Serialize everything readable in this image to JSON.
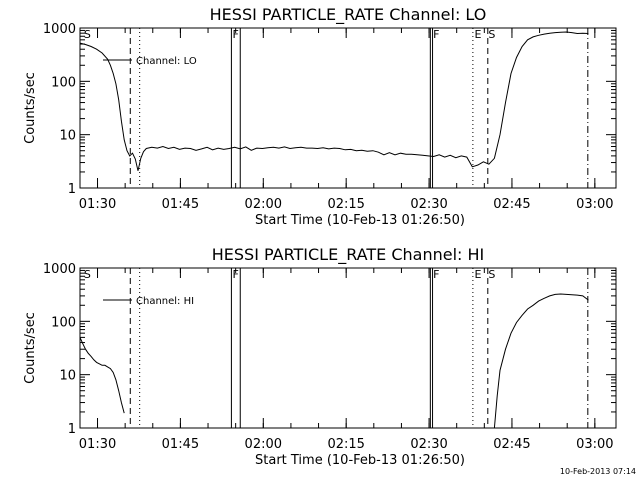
{
  "footer": {
    "timestamp": "10-Feb-2013 07:14"
  },
  "chart_data": [
    {
      "type": "line",
      "title": "HESSI PARTICLE_RATE Channel: LO",
      "xlabel": "Start Time (10-Feb-13 01:26:50)",
      "ylabel": "Counts/sec",
      "x_units": "minutes after 01:26:50",
      "xlim": [
        0,
        97
      ],
      "ylim": [
        1,
        1000
      ],
      "yscale": "log",
      "grid": false,
      "legend": "top-left",
      "x_ticks": [
        {
          "label": "01:30",
          "x": 3.17
        },
        {
          "label": "01:45",
          "x": 18.17
        },
        {
          "label": "02:00",
          "x": 33.17
        },
        {
          "label": "02:15",
          "x": 48.17
        },
        {
          "label": "02:30",
          "x": 63.17
        },
        {
          "label": "02:45",
          "x": 78.17
        },
        {
          "label": "03:00",
          "x": 93.17
        }
      ],
      "y_ticks": [
        {
          "label": "1",
          "y": 1
        },
        {
          "label": "10",
          "y": 10
        },
        {
          "label": "100",
          "y": 100
        },
        {
          "label": "1000",
          "y": 1000
        }
      ],
      "event_lines": [
        {
          "x": 9.1,
          "style": "dashed"
        },
        {
          "x": 10.8,
          "style": "dotted"
        },
        {
          "x": 27.4,
          "style": "solid"
        },
        {
          "x": 29.0,
          "style": "solid"
        },
        {
          "x": 63.4,
          "style": "solid"
        },
        {
          "x": 63.8,
          "style": "solid"
        },
        {
          "x": 71.1,
          "style": "dotted"
        },
        {
          "x": 73.8,
          "style": "dashed"
        },
        {
          "x": 91.9,
          "style": "dashdot"
        }
      ],
      "markers": [
        {
          "label": "S",
          "x": 0.7
        },
        {
          "label": "F",
          "x": 27.6
        },
        {
          "label": "F",
          "x": 63.9
        },
        {
          "label": "E",
          "x": 71.4
        },
        {
          "label": "S",
          "x": 73.9
        }
      ],
      "series": [
        {
          "name": "Channel: LO",
          "x": [
            0,
            1,
            2,
            3,
            4,
            5,
            5.5,
            6,
            6.5,
            7,
            7.5,
            8,
            8.5,
            9,
            9.5,
            10,
            10.5,
            11,
            11.5,
            12,
            13,
            14,
            15,
            16,
            17,
            18,
            19,
            20,
            21,
            22,
            23,
            24,
            25,
            26,
            27,
            28,
            29,
            30,
            31,
            32,
            33,
            34,
            35,
            36,
            37,
            38,
            39,
            40,
            41,
            42,
            43,
            44,
            45,
            46,
            47,
            48,
            49,
            50,
            51,
            52,
            53,
            54,
            55,
            56,
            57,
            58,
            59,
            60,
            61,
            62,
            63,
            64,
            65,
            66,
            67,
            68,
            69,
            70,
            71,
            72,
            73,
            74,
            75,
            76,
            77,
            78,
            79,
            80,
            81,
            82,
            83,
            84,
            85,
            86,
            87,
            88,
            89,
            90,
            91,
            92
          ],
          "values": [
            520,
            490,
            450,
            400,
            340,
            260,
            200,
            140,
            90,
            45,
            18,
            8,
            5,
            4,
            4.5,
            3.5,
            2.1,
            3.6,
            4.8,
            5.5,
            5.8,
            5.6,
            6,
            5.5,
            5.8,
            5.3,
            5.6,
            5.5,
            5.1,
            5.4,
            5.8,
            5.2,
            5.6,
            5.3,
            5.5,
            5.8,
            5.4,
            5.9,
            5.1,
            5.6,
            5.5,
            5.7,
            5.8,
            5.6,
            5.9,
            5.5,
            5.7,
            5.8,
            5.6,
            5.6,
            5.5,
            5.7,
            5.4,
            5.6,
            5.5,
            5.2,
            5.3,
            5,
            5.1,
            4.9,
            5,
            4.7,
            4.2,
            4.6,
            4.2,
            4.5,
            4.3,
            4.3,
            4.2,
            4.1,
            4,
            3.9,
            4.2,
            3.8,
            4.1,
            3.7,
            4,
            3.8,
            2.5,
            2.7,
            3.1,
            2.8,
            3.6,
            10,
            40,
            140,
            280,
            450,
            600,
            680,
            730,
            770,
            800,
            820,
            830,
            840,
            820,
            790,
            800,
            790
          ]
        }
      ]
    },
    {
      "type": "line",
      "title": "HESSI PARTICLE_RATE Channel: HI",
      "xlabel": "Start Time (10-Feb-13 01:26:50)",
      "ylabel": "Counts/sec",
      "x_units": "minutes after 01:26:50",
      "xlim": [
        0,
        97
      ],
      "ylim": [
        1,
        1000
      ],
      "yscale": "log",
      "grid": false,
      "legend": "top-left",
      "x_ticks": [
        {
          "label": "01:30",
          "x": 3.17
        },
        {
          "label": "01:45",
          "x": 18.17
        },
        {
          "label": "02:00",
          "x": 33.17
        },
        {
          "label": "02:15",
          "x": 48.17
        },
        {
          "label": "02:30",
          "x": 63.17
        },
        {
          "label": "02:45",
          "x": 78.17
        },
        {
          "label": "03:00",
          "x": 93.17
        }
      ],
      "y_ticks": [
        {
          "label": "1",
          "y": 1
        },
        {
          "label": "10",
          "y": 10
        },
        {
          "label": "100",
          "y": 100
        },
        {
          "label": "1000",
          "y": 1000
        }
      ],
      "event_lines": [
        {
          "x": 9.1,
          "style": "dashed"
        },
        {
          "x": 10.8,
          "style": "dotted"
        },
        {
          "x": 27.4,
          "style": "solid"
        },
        {
          "x": 29.0,
          "style": "solid"
        },
        {
          "x": 63.4,
          "style": "solid"
        },
        {
          "x": 63.8,
          "style": "solid"
        },
        {
          "x": 71.1,
          "style": "dotted"
        },
        {
          "x": 73.8,
          "style": "dashed"
        },
        {
          "x": 91.9,
          "style": "dashdot"
        }
      ],
      "markers": [
        {
          "label": "S",
          "x": 0.7
        },
        {
          "label": "F",
          "x": 27.6
        },
        {
          "label": "F",
          "x": 63.9
        },
        {
          "label": "E",
          "x": 71.4
        },
        {
          "label": "S",
          "x": 73.9
        }
      ],
      "series": [
        {
          "name": "Channel: HI",
          "x": [
            0,
            0.5,
            1,
            1.5,
            2,
            2.5,
            3,
            3.5,
            4,
            4.5,
            5,
            5.5,
            6,
            6.5,
            7,
            7.5,
            8
          ],
          "values": [
            50,
            38,
            30,
            25,
            22,
            19,
            17,
            16,
            15,
            15,
            14,
            13,
            11,
            8,
            5,
            3,
            1.9
          ]
        },
        {
          "name": "Channel: HI",
          "x": [
            75,
            75.5,
            76,
            77,
            78,
            79,
            80,
            81,
            82,
            83,
            84,
            85,
            86,
            87,
            88,
            89,
            90,
            91,
            92
          ],
          "values": [
            1,
            4,
            12,
            30,
            60,
            95,
            130,
            170,
            200,
            240,
            270,
            300,
            320,
            325,
            320,
            315,
            310,
            300,
            250
          ]
        }
      ]
    }
  ]
}
